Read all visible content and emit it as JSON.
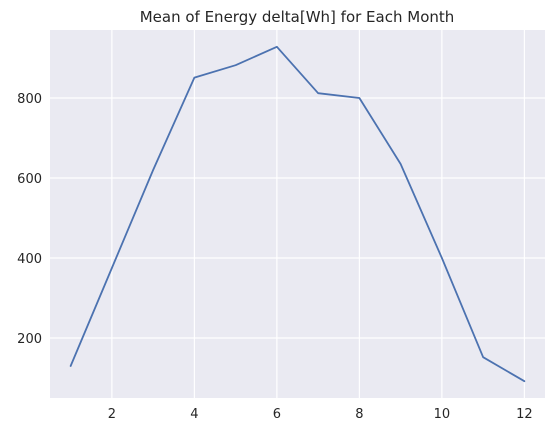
{
  "chart_data": {
    "type": "line",
    "title": "Mean of Energy delta[Wh] for Each Month",
    "xlabel": "",
    "ylabel": "",
    "xlim": [
      0.5,
      12.5
    ],
    "ylim": [
      50,
      970
    ],
    "x_ticks": [
      2,
      4,
      6,
      8,
      10,
      12
    ],
    "y_ticks": [
      200,
      400,
      600,
      800
    ],
    "grid": true,
    "series": [
      {
        "color": "#4c72b0",
        "x": [
          1,
          2,
          3,
          4,
          5,
          6,
          7,
          8,
          9,
          10,
          11,
          12
        ],
        "y": [
          130,
          375,
          620,
          851,
          882,
          928,
          812,
          800,
          635,
          400,
          152,
          92
        ]
      }
    ]
  },
  "style": {
    "plot_background": "#eaeaf2",
    "grid_color": "#ffffff",
    "text_color": "#262626"
  }
}
